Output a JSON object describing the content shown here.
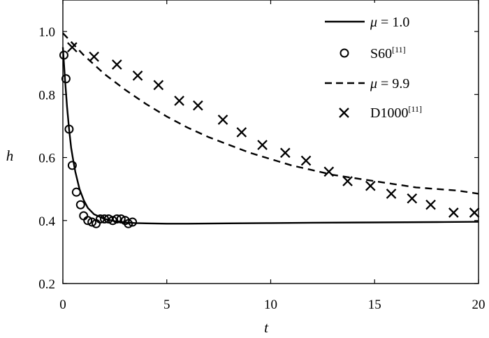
{
  "chart_data": {
    "type": "line",
    "xlabel": "t",
    "ylabel": "h",
    "xlim": [
      0,
      20
    ],
    "ylim": [
      0.2,
      1.1
    ],
    "xticks": [
      "0",
      "5",
      "10",
      "15",
      "20"
    ],
    "yticks": [
      "0.2",
      "0.4",
      "0.6",
      "0.8",
      "1.0"
    ],
    "grid": false,
    "legend_position": "top-right",
    "series": [
      {
        "name_symbol": "μ",
        "name_rest": " = 1.0",
        "style": "solid-line",
        "color": "#000000",
        "x": [
          0,
          0.05,
          0.1,
          0.2,
          0.3,
          0.4,
          0.5,
          0.6,
          0.8,
          1.0,
          1.2,
          1.5,
          2.0,
          2.5,
          3.0,
          3.5,
          4.0,
          5.0,
          6.0,
          8.0,
          10.0,
          12.0,
          15.0,
          18.0,
          20.0
        ],
        "y": [
          0.95,
          0.9,
          0.85,
          0.76,
          0.69,
          0.63,
          0.59,
          0.555,
          0.5,
          0.465,
          0.44,
          0.42,
          0.405,
          0.398,
          0.394,
          0.392,
          0.391,
          0.39,
          0.39,
          0.391,
          0.392,
          0.393,
          0.394,
          0.395,
          0.396
        ]
      },
      {
        "name_main": "S60",
        "name_sup": "[11]",
        "style": "circle-marker",
        "color": "#000000",
        "x": [
          0.05,
          0.15,
          0.3,
          0.45,
          0.65,
          0.85,
          1.0,
          1.2,
          1.4,
          1.6,
          1.8,
          2.0,
          2.2,
          2.4,
          2.6,
          2.8,
          3.0,
          3.15,
          3.35
        ],
        "y": [
          0.925,
          0.85,
          0.69,
          0.575,
          0.49,
          0.45,
          0.415,
          0.4,
          0.395,
          0.39,
          0.405,
          0.405,
          0.405,
          0.4,
          0.405,
          0.405,
          0.4,
          0.39,
          0.395
        ]
      },
      {
        "name_symbol": "μ",
        "name_rest": " = 9.9",
        "style": "dashed-line",
        "color": "#000000",
        "x": [
          0,
          1,
          2,
          3,
          4,
          5,
          6,
          7,
          8,
          9,
          10,
          11,
          12,
          13,
          14,
          15,
          16,
          17,
          18,
          19,
          20
        ],
        "y": [
          0.995,
          0.925,
          0.865,
          0.815,
          0.77,
          0.73,
          0.695,
          0.665,
          0.64,
          0.615,
          0.595,
          0.575,
          0.56,
          0.545,
          0.535,
          0.525,
          0.515,
          0.505,
          0.5,
          0.495,
          0.485
        ]
      },
      {
        "name_main": "D1000",
        "name_sup": "[11]",
        "style": "x-marker",
        "color": "#000000",
        "x": [
          0.45,
          1.5,
          2.6,
          3.6,
          4.6,
          5.6,
          6.5,
          7.7,
          8.6,
          9.6,
          10.7,
          11.7,
          12.8,
          13.7,
          14.8,
          15.8,
          16.8,
          17.7,
          18.8,
          19.8
        ],
        "y": [
          0.95,
          0.92,
          0.895,
          0.86,
          0.83,
          0.78,
          0.765,
          0.72,
          0.68,
          0.64,
          0.615,
          0.59,
          0.555,
          0.525,
          0.51,
          0.485,
          0.47,
          0.45,
          0.425,
          0.425
        ]
      }
    ]
  }
}
